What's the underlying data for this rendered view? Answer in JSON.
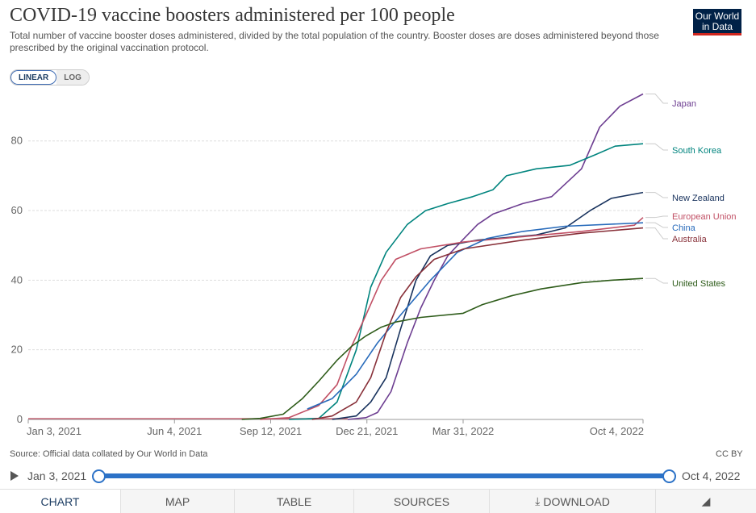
{
  "header": {
    "title": "COVID-19 vaccine boosters administered per 100 people",
    "subtitle": "Total number of vaccine booster doses administered, divided by the total population of the country. Booster doses are doses administered beyond those prescribed by the original vaccination protocol.",
    "logo_line1": "Our World",
    "logo_line2": "in Data"
  },
  "scale_toggle": {
    "linear": "LINEAR",
    "log": "LOG",
    "selected": "LINEAR"
  },
  "chart_data": {
    "type": "line",
    "title": "COVID-19 vaccine boosters administered per 100 people",
    "x_type": "date",
    "xlim": [
      "2021-01-03",
      "2022-10-04"
    ],
    "ylim": [
      0,
      95
    ],
    "y_ticks": [
      0,
      20,
      40,
      60,
      80
    ],
    "x_tick_labels": [
      "Jan 3, 2021",
      "Jun 4, 2021",
      "Sep 12, 2021",
      "Dec 21, 2021",
      "Mar 31, 2022",
      "Oct 4, 2022"
    ],
    "x_tick_dates": [
      "2021-01-03",
      "2021-06-04",
      "2021-09-12",
      "2021-12-21",
      "2022-03-31",
      "2022-10-04"
    ],
    "grid": true,
    "legend": "right, end-of-line labels",
    "series": [
      {
        "name": "Japan",
        "color": "#6d3e91",
        "points": [
          [
            "2021-12-01",
            0
          ],
          [
            "2021-12-20",
            0.5
          ],
          [
            "2022-01-01",
            2
          ],
          [
            "2022-01-15",
            8
          ],
          [
            "2022-02-01",
            22
          ],
          [
            "2022-02-15",
            32
          ],
          [
            "2022-03-01",
            40
          ],
          [
            "2022-03-15",
            47
          ],
          [
            "2022-04-01",
            52
          ],
          [
            "2022-04-15",
            56
          ],
          [
            "2022-05-01",
            59
          ],
          [
            "2022-06-01",
            62
          ],
          [
            "2022-07-01",
            64
          ],
          [
            "2022-08-01",
            72
          ],
          [
            "2022-08-20",
            84
          ],
          [
            "2022-09-10",
            90
          ],
          [
            "2022-10-04",
            93.5
          ]
        ]
      },
      {
        "name": "South Korea",
        "color": "#00847e",
        "points": [
          [
            "2021-10-01",
            0
          ],
          [
            "2021-11-01",
            0.3
          ],
          [
            "2021-11-20",
            5
          ],
          [
            "2021-12-10",
            20
          ],
          [
            "2021-12-25",
            38
          ],
          [
            "2022-01-10",
            48
          ],
          [
            "2022-02-01",
            56
          ],
          [
            "2022-02-20",
            60
          ],
          [
            "2022-03-15",
            62
          ],
          [
            "2022-04-10",
            64
          ],
          [
            "2022-05-01",
            66
          ],
          [
            "2022-05-15",
            70
          ],
          [
            "2022-06-15",
            72
          ],
          [
            "2022-07-20",
            73
          ],
          [
            "2022-08-15",
            76
          ],
          [
            "2022-09-05",
            78.5
          ],
          [
            "2022-10-04",
            79.2
          ]
        ]
      },
      {
        "name": "New Zealand",
        "color": "#18325d",
        "points": [
          [
            "2021-11-15",
            0
          ],
          [
            "2021-12-10",
            1
          ],
          [
            "2021-12-25",
            5
          ],
          [
            "2022-01-10",
            12
          ],
          [
            "2022-01-25",
            26
          ],
          [
            "2022-02-10",
            40
          ],
          [
            "2022-02-25",
            47
          ],
          [
            "2022-03-15",
            50
          ],
          [
            "2022-04-15",
            51.5
          ],
          [
            "2022-06-15",
            53
          ],
          [
            "2022-07-15",
            55
          ],
          [
            "2022-08-10",
            60
          ],
          [
            "2022-09-01",
            63.5
          ],
          [
            "2022-10-04",
            65.2
          ]
        ]
      },
      {
        "name": "European Union",
        "color": "#c15065",
        "points": [
          [
            "2021-09-01",
            0
          ],
          [
            "2021-10-01",
            0.5
          ],
          [
            "2021-11-01",
            4
          ],
          [
            "2021-11-20",
            10
          ],
          [
            "2021-12-05",
            21
          ],
          [
            "2021-12-20",
            30
          ],
          [
            "2022-01-05",
            40
          ],
          [
            "2022-01-20",
            46
          ],
          [
            "2022-02-15",
            49
          ],
          [
            "2022-04-01",
            51
          ],
          [
            "2022-06-01",
            52.5
          ],
          [
            "2022-08-01",
            54
          ],
          [
            "2022-09-25",
            55.8
          ],
          [
            "2022-10-04",
            58
          ]
        ]
      },
      {
        "name": "China",
        "color": "#286bbb",
        "points": [
          [
            "2021-10-20",
            3
          ],
          [
            "2021-11-15",
            6
          ],
          [
            "2021-12-10",
            13
          ],
          [
            "2022-01-01",
            22
          ],
          [
            "2022-01-25",
            30
          ],
          [
            "2022-02-25",
            40
          ],
          [
            "2022-03-25",
            48
          ],
          [
            "2022-04-25",
            52
          ],
          [
            "2022-06-01",
            54
          ],
          [
            "2022-07-15",
            55.5
          ],
          [
            "2022-10-04",
            56.5
          ]
        ]
      },
      {
        "name": "Australia",
        "color": "#883039",
        "points": [
          [
            "2021-10-25",
            0
          ],
          [
            "2021-11-15",
            1
          ],
          [
            "2021-12-10",
            5
          ],
          [
            "2021-12-25",
            12
          ],
          [
            "2022-01-10",
            25
          ],
          [
            "2022-01-25",
            35
          ],
          [
            "2022-02-10",
            41
          ],
          [
            "2022-03-01",
            46
          ],
          [
            "2022-04-01",
            49
          ],
          [
            "2022-06-01",
            51.5
          ],
          [
            "2022-08-01",
            53.5
          ],
          [
            "2022-10-04",
            55
          ]
        ]
      },
      {
        "name": "United States",
        "color": "#38aaba",
        "points": [
          [
            "2021-08-13",
            0
          ],
          [
            "2021-09-01",
            0.3
          ],
          [
            "2021-09-25",
            1.5
          ],
          [
            "2021-10-15",
            6
          ],
          [
            "2021-11-01",
            11
          ],
          [
            "2021-11-20",
            17
          ],
          [
            "2021-12-05",
            21
          ],
          [
            "2021-12-20",
            24
          ],
          [
            "2022-01-05",
            26.5
          ],
          [
            "2022-01-20",
            28
          ],
          [
            "2022-02-15",
            29.3
          ],
          [
            "2022-03-31",
            30.5
          ],
          [
            "2022-04-20",
            33
          ],
          [
            "2022-05-20",
            35.5
          ],
          [
            "2022-06-20",
            37.5
          ],
          [
            "2022-08-01",
            39.3
          ],
          [
            "2022-09-01",
            40
          ],
          [
            "2022-10-04",
            40.5
          ]
        ]
      }
    ]
  },
  "footer": {
    "source": "Source: Official data collated by Our World in Data",
    "license": "CC BY"
  },
  "timeline": {
    "start": "Jan 3, 2021",
    "end": "Oct 4, 2022"
  },
  "tabs": [
    "CHART",
    "MAP",
    "TABLE",
    "SOURCES",
    "DOWNLOAD",
    ""
  ]
}
